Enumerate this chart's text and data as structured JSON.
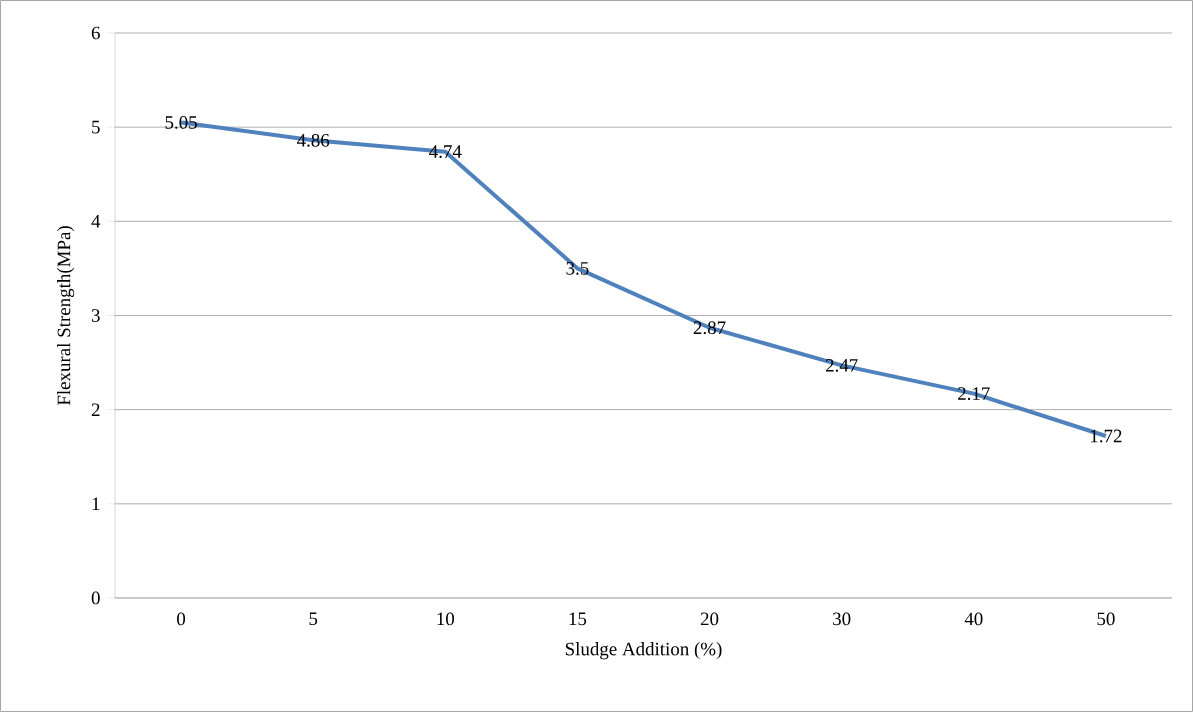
{
  "chart_data": {
    "type": "line",
    "xlabel": "Sludge Addition (%)",
    "ylabel": "Flexural Strength(MPa)",
    "categories": [
      "0",
      "5",
      "10",
      "15",
      "20",
      "30",
      "40",
      "50"
    ],
    "values": [
      5.05,
      4.86,
      4.74,
      3.5,
      2.87,
      2.47,
      2.17,
      1.72
    ],
    "color": "#4f81bd",
    "ylim": [
      0,
      6
    ],
    "yticks": [
      0,
      1,
      2,
      3,
      4,
      5,
      6
    ],
    "grid": "y",
    "data_labels": true,
    "marker": "none",
    "line_style": "solid"
  }
}
